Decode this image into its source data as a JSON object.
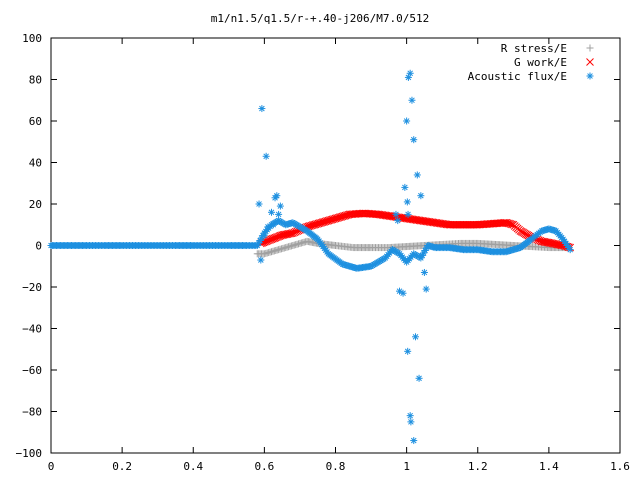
{
  "chart_data": {
    "type": "scatter",
    "title": "m1/n1.5/q1.5/r-+.40-j206/M7.0/512",
    "xlabel": "",
    "ylabel": "",
    "xlim": [
      0,
      1.6
    ],
    "ylim": [
      -100,
      100
    ],
    "x_ticks": [
      "0",
      "0.2",
      "0.4",
      "0.6",
      "0.8",
      "1",
      "1.2",
      "1.4",
      "1.6"
    ],
    "y_ticks": [
      "100",
      "80",
      "60",
      "40",
      "20",
      "0",
      "−20",
      "−40",
      "−60",
      "−80",
      "−100"
    ],
    "grid": false,
    "legend_position": "top-right",
    "series": [
      {
        "name": "R stress/E",
        "marker": "+",
        "color": "#a0a0a0",
        "x": [
          0.58,
          0.6,
          0.62,
          0.64,
          0.66,
          0.68,
          0.7,
          0.72,
          0.75,
          0.8,
          0.85,
          0.9,
          0.95,
          1.0,
          1.05,
          1.1,
          1.15,
          1.2,
          1.25,
          1.3,
          1.35,
          1.4,
          1.45
        ],
        "y": [
          -4,
          -4,
          -3,
          -2,
          -1,
          0,
          1,
          2,
          1,
          0,
          -1,
          -1,
          -1,
          -0.5,
          0,
          0.5,
          1,
          1,
          0.5,
          0,
          -0.5,
          -1,
          -1
        ]
      },
      {
        "name": "G work/E",
        "marker": "x",
        "color": "#ff0000",
        "x": [
          0.59,
          0.62,
          0.65,
          0.68,
          0.72,
          0.76,
          0.8,
          0.84,
          0.88,
          0.92,
          0.96,
          1.0,
          1.04,
          1.08,
          1.12,
          1.16,
          1.2,
          1.24,
          1.28,
          1.3,
          1.32,
          1.35,
          1.38,
          1.41,
          1.44,
          1.46
        ],
        "y": [
          1,
          3,
          5,
          6,
          9,
          11,
          13,
          15,
          15.5,
          15,
          14,
          13,
          12,
          11,
          10,
          10,
          10,
          10.5,
          11,
          10,
          7,
          4,
          2,
          1,
          0,
          -1
        ]
      },
      {
        "name": "Acoustic flux/E",
        "marker": "*",
        "color": "#1e90e0",
        "x": [
          0,
          0.05,
          0.1,
          0.15,
          0.2,
          0.25,
          0.3,
          0.35,
          0.4,
          0.45,
          0.5,
          0.55,
          0.58,
          0.6,
          0.62,
          0.64,
          0.66,
          0.68,
          0.7,
          0.72,
          0.75,
          0.78,
          0.82,
          0.86,
          0.9,
          0.94,
          0.96,
          0.98,
          1.0,
          1.02,
          1.04,
          1.06,
          1.08,
          1.12,
          1.16,
          1.2,
          1.24,
          1.28,
          1.32,
          1.35,
          1.38,
          1.4,
          1.42,
          1.44,
          1.46
        ],
        "y": [
          0,
          0,
          0,
          0,
          0,
          0,
          0,
          0,
          0,
          0,
          0,
          0,
          0,
          6,
          10,
          12,
          10,
          11,
          9,
          7,
          3,
          -4,
          -9,
          -11,
          -10,
          -6,
          -2,
          -4,
          -8,
          -4,
          -6,
          0,
          -1,
          -1,
          -2,
          -2,
          -3,
          -3,
          -1,
          3,
          7,
          8,
          7,
          3,
          -2
        ]
      },
      {
        "name": "Acoustic flux/E",
        "marker": "*",
        "color": "#1e90e0",
        "x": [
          0.585,
          0.59,
          0.593,
          0.6,
          0.605,
          0.61,
          0.62,
          0.625,
          0.63,
          0.635,
          0.64,
          0.645,
          0.96,
          0.97,
          0.975,
          0.98,
          0.99,
          0.995,
          1.0,
          1.003,
          1.005,
          1.01,
          1.012,
          1.015,
          1.02,
          1.025,
          1.03,
          1.035,
          1.04,
          1.05,
          1.055,
          1.02,
          1.01,
          1.004,
          1.002
        ],
        "y": [
          20,
          -7,
          66,
          5,
          43,
          9,
          16,
          10,
          23,
          24,
          15,
          19,
          -2,
          15,
          12,
          -22,
          -23,
          28,
          60,
          -51,
          81,
          -82,
          -85,
          70,
          51,
          -44,
          34,
          -64,
          24,
          -13,
          -21,
          -94,
          83,
          15,
          21
        ]
      }
    ]
  }
}
